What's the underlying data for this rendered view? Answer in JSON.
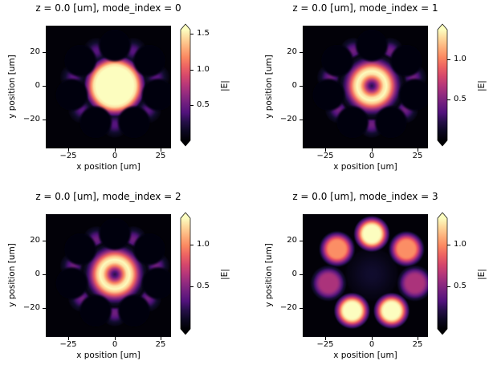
{
  "figure": {
    "background": "#ffffff",
    "text_color": "#000000",
    "colormap": "magma"
  },
  "colormap_stops": [
    [
      0.0,
      "#000004"
    ],
    [
      0.13,
      "#120d31"
    ],
    [
      0.25,
      "#51127c"
    ],
    [
      0.38,
      "#822681"
    ],
    [
      0.5,
      "#b73779"
    ],
    [
      0.63,
      "#e75263"
    ],
    [
      0.75,
      "#fb8861"
    ],
    [
      0.88,
      "#fec488"
    ],
    [
      1.0,
      "#fcfdbf"
    ]
  ],
  "chart_data": [
    {
      "type": "heatmap",
      "title": "z = 0.0 [um], mode_index = 0",
      "xlabel": "x position [um]",
      "ylabel": "y position [um]",
      "xlim_um": [
        -36,
        36
      ],
      "ylim_um": [
        -36,
        36
      ],
      "xticks": [
        -25,
        0,
        25
      ],
      "yticks": [
        20,
        0,
        -20
      ],
      "xtick_labels": [
        "−25",
        "0",
        "25"
      ],
      "ytick_labels": [
        "20",
        "0",
        "−20"
      ],
      "colorbar": {
        "label": "|E|",
        "vmin": 0.0,
        "vmax": 1.56,
        "ticks": [
          0.5,
          1.0,
          1.5
        ],
        "tick_labels": [
          "0.5",
          "1.0",
          "1.5"
        ],
        "extend": "both",
        "colormap": "magma"
      },
      "field": {
        "profile": "spot",
        "description": "Fundamental supermode: one bright lobe centred at (0,0) saturating the scale, faint seven-petal halo between the dark ring cores",
        "lobes": [
          {
            "x_um": 0.0,
            "y_um": 0.0,
            "amplitude": 1.56,
            "radius_um": 18
          }
        ],
        "halo_level": 0.27,
        "core_ring": {
          "count": 7,
          "radius_um": 24,
          "first_angle_deg": 90,
          "core_radius_um": 9,
          "bright": false
        }
      }
    },
    {
      "type": "heatmap",
      "title": "z = 0.0 [um], mode_index = 1",
      "xlabel": "x position [um]",
      "ylabel": "y position [um]",
      "xlim_um": [
        -36,
        36
      ],
      "ylim_um": [
        -36,
        36
      ],
      "xticks": [
        -25,
        0,
        25
      ],
      "yticks": [
        20,
        0,
        -20
      ],
      "xtick_labels": [
        "−25",
        "0",
        "25"
      ],
      "ytick_labels": [
        "20",
        "0",
        "−20"
      ],
      "colorbar": {
        "label": "|E|",
        "vmin": 0.0,
        "vmax": 1.36,
        "ticks": [
          0.5,
          1.0
        ],
        "tick_labels": [
          "0.5",
          "1.0"
        ],
        "extend": "both",
        "colormap": "magma"
      },
      "field": {
        "profile": "ring",
        "description": "Donut supermode: bright ring of |E| around a dark central dip, scalloped by the seven dark ring cores",
        "ring": {
          "radius_um": 8,
          "halo_radius_um": 20,
          "amplitude": 1.36
        },
        "halo_level": 0.33,
        "core_ring": {
          "count": 7,
          "radius_um": 24,
          "first_angle_deg": 90,
          "core_radius_um": 9,
          "bright": false
        }
      }
    },
    {
      "type": "heatmap",
      "title": "z = 0.0 [um], mode_index = 2",
      "xlabel": "x position [um]",
      "ylabel": "y position [um]",
      "xlim_um": [
        -36,
        36
      ],
      "ylim_um": [
        -36,
        36
      ],
      "xticks": [
        -25,
        0,
        25
      ],
      "yticks": [
        20,
        0,
        -20
      ],
      "xtick_labels": [
        "−25",
        "0",
        "25"
      ],
      "ytick_labels": [
        "20",
        "0",
        "−20"
      ],
      "colorbar": {
        "label": "|E|",
        "vmin": 0.0,
        "vmax": 1.31,
        "ticks": [
          0.5,
          1.0
        ],
        "tick_labels": [
          "0.5",
          "1.0"
        ],
        "extend": "both",
        "colormap": "magma"
      },
      "field": {
        "profile": "ring",
        "description": "Degenerate donut supermode: bright ring of |E| around a dark central dip, scalloped by the seven dark ring cores",
        "ring": {
          "radius_um": 8,
          "halo_radius_um": 20,
          "amplitude": 1.31
        },
        "halo_level": 0.33,
        "core_ring": {
          "count": 7,
          "radius_um": 24,
          "first_angle_deg": 90,
          "core_radius_um": 9,
          "bright": false
        }
      }
    },
    {
      "type": "heatmap",
      "title": "z = 0.0 [um], mode_index = 3",
      "xlabel": "x position [um]",
      "ylabel": "y position [um]",
      "xlim_um": [
        -36,
        36
      ],
      "ylim_um": [
        -36,
        36
      ],
      "xticks": [
        -25,
        0,
        25
      ],
      "yticks": [
        20,
        0,
        -20
      ],
      "xtick_labels": [
        "−25",
        "0",
        "25"
      ],
      "ytick_labels": [
        "20",
        "0",
        "−20"
      ],
      "colorbar": {
        "label": "|E|",
        "vmin": 0.0,
        "vmax": 1.31,
        "ticks": [
          0.5,
          1.0
        ],
        "tick_labels": [
          "0.5",
          "1.0"
        ],
        "extend": "both",
        "colormap": "magma"
      },
      "field": {
        "profile": "lobes",
        "description": "Higher-order supermode: light confined in the seven ring cores at radius ~24 um; top and two bottom lobes saturated, upper-left/upper-right medium, left/right dim",
        "haze_level": 0.12,
        "lobes": [
          {
            "x_um": 0.0,
            "y_um": 24.0,
            "amplitude": 1.31,
            "radius_um": 10.5
          },
          {
            "x_um": -18.8,
            "y_um": 15.0,
            "amplitude": 1.0,
            "radius_um": 10.5
          },
          {
            "x_um": 18.8,
            "y_um": 15.0,
            "amplitude": 1.0,
            "radius_um": 10.5
          },
          {
            "x_um": -23.4,
            "y_um": -5.3,
            "amplitude": 0.62,
            "radius_um": 10.5
          },
          {
            "x_um": 23.4,
            "y_um": -5.3,
            "amplitude": 0.62,
            "radius_um": 10.5
          },
          {
            "x_um": -10.7,
            "y_um": -21.6,
            "amplitude": 1.31,
            "radius_um": 10.5
          },
          {
            "x_um": 10.7,
            "y_um": -21.6,
            "amplitude": 1.31,
            "radius_um": 10.5
          }
        ],
        "core_ring": {
          "count": 7,
          "radius_um": 24,
          "first_angle_deg": 90,
          "core_radius_um": 9,
          "bright": true
        }
      }
    }
  ]
}
